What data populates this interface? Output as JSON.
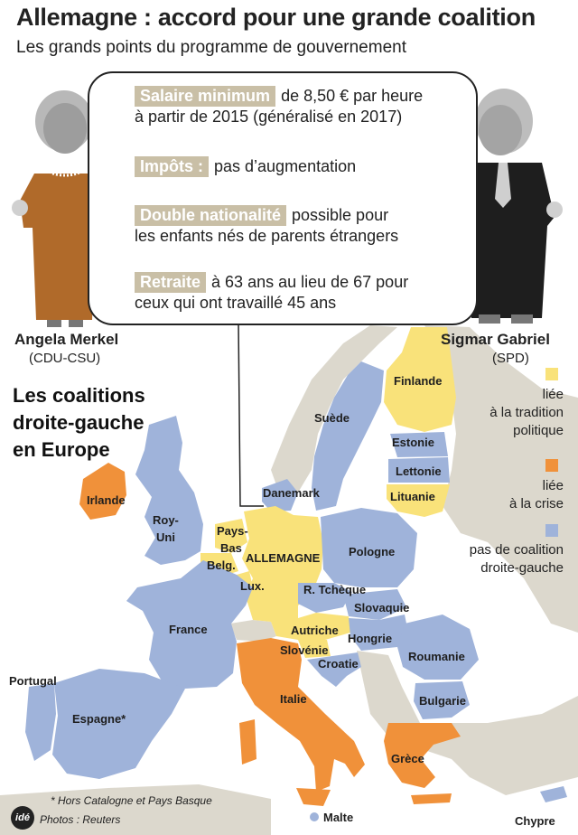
{
  "header": {
    "title": "Allemagne : accord pour une grande coalition",
    "subtitle": "Les grands points du programme de gouvernement"
  },
  "program": [
    {
      "tag": "Salaire minimum",
      "line1": "de 8,50 € par heure",
      "line2": "à partir de 2015 (généralisé en 2017)"
    },
    {
      "tag": "Impôts :",
      "line1": "pas d’augmentation",
      "line2": ""
    },
    {
      "tag": "Double nationalité",
      "line1": "possible pour",
      "line2": "les enfants nés de parents étrangers"
    },
    {
      "tag": "Retraite",
      "line1": "à 63 ans au lieu de 67 pour",
      "line2": "ceux qui ont travaillé 45 ans"
    }
  ],
  "people": {
    "left": {
      "name": "Angela Merkel",
      "party": "(CDU-CSU)"
    },
    "right": {
      "name": "Sigmar Gabriel",
      "party": "(SPD)"
    }
  },
  "map": {
    "title_lines": [
      "Les coalitions",
      "droite-gauche",
      "en Europe"
    ],
    "legend": [
      {
        "color": "#f9e27a",
        "lines": [
          "liée",
          "à la tradition",
          "politique"
        ]
      },
      {
        "color": "#f0913a",
        "lines": [
          "liée",
          "à la crise"
        ]
      },
      {
        "color": "#9fb3da",
        "lines": [
          "pas de coalition",
          "droite-gauche"
        ]
      }
    ],
    "colors": {
      "tradition": "#f9e27a",
      "crise": "#f0913a",
      "none": "#9fb3da",
      "other": "#dcd8cd",
      "sea": "#ffffff",
      "bubble_tag": "#c9bfa6"
    },
    "countries": {
      "finlande": "Finlande",
      "suede": "Suède",
      "estonie": "Estonie",
      "lettonie": "Lettonie",
      "lituanie": "Lituanie",
      "danemark": "Danemark",
      "irlande": "Irlande",
      "royuni_1": "Roy-",
      "royuni_2": "Uni",
      "paysbas_1": "Pays-",
      "paysbas_2": "Bas",
      "belgique": "Belg.",
      "allemagne": "ALLEMAGNE",
      "pologne": "Pologne",
      "lux": "Lux.",
      "rtcheque": "R. Tchèque",
      "slovaquie": "Slovaquie",
      "france": "France",
      "autriche": "Autriche",
      "hongrie": "Hongrie",
      "slovenie": "Slovénie",
      "croatie": "Croatie",
      "roumanie": "Roumanie",
      "portugal": "Portugal",
      "espagne": "Espagne*",
      "italie": "Italie",
      "bulgarie": "Bulgarie",
      "grece": "Grèce",
      "malte": "Malte",
      "chypre": "Chypre"
    }
  },
  "footer": {
    "note": "* Hors Catalogne et Pays Basque",
    "credit": "Photos : Reuters",
    "logo": "idé"
  }
}
